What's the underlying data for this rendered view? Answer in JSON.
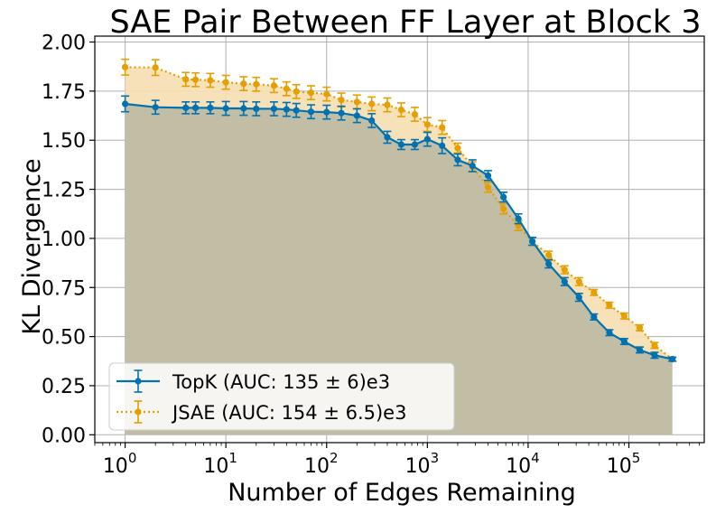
{
  "chart_data": {
    "type": "line",
    "title": "SAE Pair Between FF Layer at Block 3",
    "xlabel": "Number of Edges Remaining",
    "ylabel": "KL Divergence",
    "xscale": "log",
    "xlim": [
      0.5,
      560000
    ],
    "ylim": [
      -0.04,
      2.03
    ],
    "yticks": [
      "0.00",
      "0.25",
      "0.50",
      "0.75",
      "1.00",
      "1.25",
      "1.50",
      "1.75",
      "2.00"
    ],
    "xticks": [
      {
        "base": "10",
        "exp": "0"
      },
      {
        "base": "10",
        "exp": "1"
      },
      {
        "base": "10",
        "exp": "2"
      },
      {
        "base": "10",
        "exp": "3"
      },
      {
        "base": "10",
        "exp": "4"
      },
      {
        "base": "10",
        "exp": "5"
      }
    ],
    "grid": true,
    "legend_position": "lower-left",
    "x": [
      1,
      2,
      4,
      5,
      7,
      10,
      15,
      20,
      30,
      40,
      50,
      70,
      100,
      140,
      200,
      280,
      400,
      550,
      750,
      1000,
      1400,
      2000,
      2800,
      4000,
      5700,
      8000,
      11000,
      16000,
      23000,
      32000,
      45000,
      64000,
      90000,
      128000,
      180000,
      270000
    ],
    "series": [
      {
        "name": "TopK (AUC: 135 ± 6)e3",
        "color": "#0072b2",
        "linestyle": "solid",
        "fill": "#b4b4a0",
        "values": [
          1.685,
          1.668,
          1.665,
          1.665,
          1.665,
          1.662,
          1.662,
          1.66,
          1.66,
          1.657,
          1.652,
          1.645,
          1.643,
          1.638,
          1.625,
          1.6,
          1.515,
          1.478,
          1.478,
          1.505,
          1.472,
          1.4,
          1.37,
          1.32,
          1.21,
          1.1,
          0.985,
          0.87,
          0.78,
          0.7,
          0.6,
          0.52,
          0.475,
          0.432,
          0.405,
          0.385
        ],
        "errors": [
          0.04,
          0.035,
          0.03,
          0.03,
          0.03,
          0.035,
          0.035,
          0.035,
          0.035,
          0.035,
          0.035,
          0.035,
          0.035,
          0.035,
          0.035,
          0.035,
          0.03,
          0.025,
          0.025,
          0.035,
          0.04,
          0.03,
          0.03,
          0.025,
          0.025,
          0.025,
          0.02,
          0.02,
          0.02,
          0.02,
          0.015,
          0.015,
          0.015,
          0.015,
          0.015,
          0.01
        ]
      },
      {
        "name": "JSAE (AUC: 154 ± 6.5)e3",
        "color": "#e69f00",
        "linestyle": "dotted",
        "fill": "#f5dfb4",
        "values": [
          1.872,
          1.87,
          1.81,
          1.808,
          1.805,
          1.795,
          1.788,
          1.785,
          1.778,
          1.762,
          1.748,
          1.742,
          1.735,
          1.705,
          1.695,
          1.685,
          1.68,
          1.655,
          1.632,
          1.58,
          1.565,
          1.46,
          1.365,
          1.26,
          1.15,
          1.065,
          0.985,
          0.915,
          0.84,
          0.78,
          0.725,
          0.66,
          0.605,
          0.545,
          0.455,
          0.385
        ],
        "errors": [
          0.04,
          0.04,
          0.035,
          0.035,
          0.035,
          0.035,
          0.035,
          0.035,
          0.035,
          0.035,
          0.035,
          0.035,
          0.035,
          0.035,
          0.035,
          0.035,
          0.035,
          0.035,
          0.035,
          0.035,
          0.035,
          0.025,
          0.025,
          0.025,
          0.025,
          0.025,
          0.02,
          0.02,
          0.02,
          0.02,
          0.015,
          0.015,
          0.015,
          0.015,
          0.015,
          0.01
        ]
      }
    ]
  }
}
